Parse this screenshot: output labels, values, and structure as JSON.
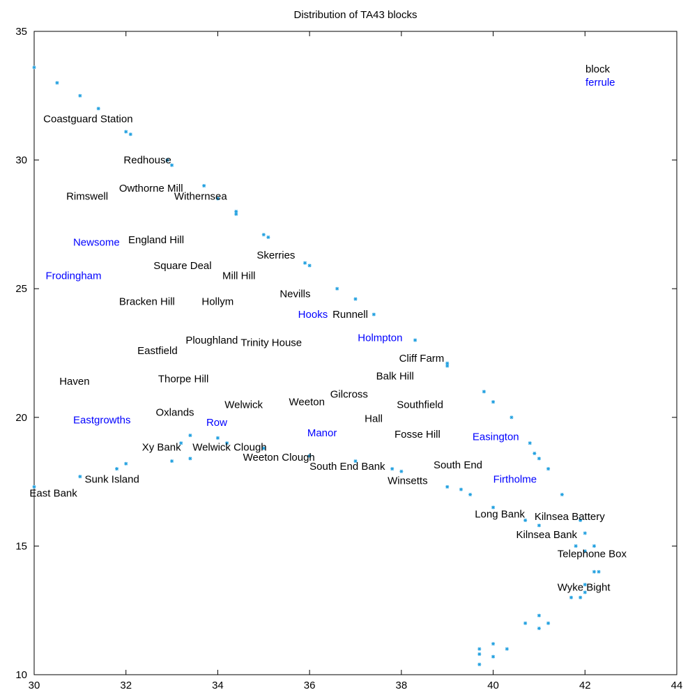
{
  "chart_data": {
    "type": "scatter",
    "title": "Distribution of TA43 blocks",
    "xlabel": "",
    "ylabel": "",
    "xlim": [
      30,
      44
    ],
    "ylim": [
      10,
      35
    ],
    "x_ticks": [
      30,
      32,
      34,
      36,
      38,
      40,
      42,
      44
    ],
    "y_ticks": [
      10,
      15,
      20,
      25,
      30,
      35
    ],
    "grid": false,
    "legend": {
      "placement": "top-right",
      "entries": [
        {
          "name": "block",
          "color": "#000000"
        },
        {
          "name": "ferrule",
          "color": "#0000ff"
        }
      ]
    },
    "marker_color": "#1f9fdf",
    "points": [
      [
        30.0,
        33.6
      ],
      [
        30.5,
        33.0
      ],
      [
        31.0,
        32.5
      ],
      [
        31.4,
        32.0
      ],
      [
        32.0,
        31.1
      ],
      [
        32.1,
        31.0
      ],
      [
        32.9,
        30.0
      ],
      [
        33.0,
        29.8
      ],
      [
        33.7,
        29.0
      ],
      [
        34.0,
        28.5
      ],
      [
        34.4,
        28.0
      ],
      [
        34.4,
        27.9
      ],
      [
        35.0,
        27.1
      ],
      [
        35.1,
        27.0
      ],
      [
        35.9,
        26.0
      ],
      [
        36.0,
        25.9
      ],
      [
        36.6,
        25.0
      ],
      [
        37.0,
        24.6
      ],
      [
        37.4,
        24.0
      ],
      [
        38.3,
        23.0
      ],
      [
        39.0,
        22.1
      ],
      [
        39.0,
        22.0
      ],
      [
        39.8,
        21.0
      ],
      [
        40.0,
        20.6
      ],
      [
        40.4,
        20.0
      ],
      [
        40.8,
        19.0
      ],
      [
        40.9,
        18.6
      ],
      [
        41.0,
        18.4
      ],
      [
        41.2,
        18.0
      ],
      [
        41.5,
        17.0
      ],
      [
        41.9,
        16.0
      ],
      [
        42.0,
        15.5
      ],
      [
        41.8,
        15.0
      ],
      [
        42.2,
        15.0
      ],
      [
        42.0,
        14.8
      ],
      [
        42.2,
        14.0
      ],
      [
        42.3,
        14.0
      ],
      [
        42.0,
        13.5
      ],
      [
        41.9,
        13.0
      ],
      [
        41.7,
        13.0
      ],
      [
        42.0,
        13.2
      ],
      [
        41.0,
        12.3
      ],
      [
        41.2,
        12.0
      ],
      [
        41.0,
        11.8
      ],
      [
        40.7,
        12.0
      ],
      [
        40.3,
        11.0
      ],
      [
        40.0,
        11.2
      ],
      [
        40.0,
        10.7
      ],
      [
        39.7,
        11.0
      ],
      [
        39.7,
        10.8
      ],
      [
        39.7,
        10.4
      ],
      [
        39.0,
        17.3
      ],
      [
        39.3,
        17.2
      ],
      [
        39.5,
        17.0
      ],
      [
        40.0,
        16.5
      ],
      [
        40.7,
        16.0
      ],
      [
        41.0,
        15.8
      ],
      [
        37.8,
        18.0
      ],
      [
        38.0,
        17.9
      ],
      [
        37.0,
        18.3
      ],
      [
        36.0,
        18.5
      ],
      [
        35.0,
        18.8
      ],
      [
        34.2,
        19.0
      ],
      [
        34.0,
        19.2
      ],
      [
        33.4,
        19.3
      ],
      [
        33.2,
        19.0
      ],
      [
        33.0,
        18.3
      ],
      [
        33.4,
        18.4
      ],
      [
        32.0,
        18.2
      ],
      [
        31.8,
        18.0
      ],
      [
        31.0,
        17.7
      ],
      [
        30.0,
        17.3
      ]
    ],
    "labels": [
      {
        "text": "Coastguard Station",
        "x": 30.2,
        "y": 31.6,
        "kind": "block"
      },
      {
        "text": "Redhouse",
        "x": 31.95,
        "y": 30.0,
        "kind": "block"
      },
      {
        "text": "Rimswell",
        "x": 30.7,
        "y": 28.6,
        "kind": "block"
      },
      {
        "text": "Owthorne Mill",
        "x": 31.85,
        "y": 28.9,
        "kind": "block"
      },
      {
        "text": "Withernsea",
        "x": 33.05,
        "y": 28.6,
        "kind": "block"
      },
      {
        "text": "Newsome",
        "x": 30.85,
        "y": 26.8,
        "kind": "ferrule"
      },
      {
        "text": "England Hill",
        "x": 32.05,
        "y": 26.9,
        "kind": "block"
      },
      {
        "text": "Skerries",
        "x": 34.85,
        "y": 26.3,
        "kind": "block"
      },
      {
        "text": "Square Deal",
        "x": 32.6,
        "y": 25.9,
        "kind": "block"
      },
      {
        "text": "Frodingham",
        "x": 30.25,
        "y": 25.5,
        "kind": "ferrule"
      },
      {
        "text": "Mill Hill",
        "x": 34.1,
        "y": 25.5,
        "kind": "block"
      },
      {
        "text": "Nevills",
        "x": 35.35,
        "y": 24.8,
        "kind": "block"
      },
      {
        "text": "Bracken Hill",
        "x": 31.85,
        "y": 24.5,
        "kind": "block"
      },
      {
        "text": "Hollym",
        "x": 33.65,
        "y": 24.5,
        "kind": "block"
      },
      {
        "text": "Hooks",
        "x": 35.75,
        "y": 24.0,
        "kind": "ferrule"
      },
      {
        "text": "Runnell",
        "x": 36.5,
        "y": 24.0,
        "kind": "block"
      },
      {
        "text": "Holmpton",
        "x": 37.05,
        "y": 23.1,
        "kind": "ferrule"
      },
      {
        "text": "Ploughland",
        "x": 33.3,
        "y": 23.0,
        "kind": "block"
      },
      {
        "text": "Trinity House",
        "x": 34.5,
        "y": 22.9,
        "kind": "block"
      },
      {
        "text": "Eastfield",
        "x": 32.25,
        "y": 22.6,
        "kind": "block"
      },
      {
        "text": "Cliff Farm",
        "x": 37.95,
        "y": 22.3,
        "kind": "block"
      },
      {
        "text": "Balk Hill",
        "x": 37.45,
        "y": 21.6,
        "kind": "block"
      },
      {
        "text": "Haven",
        "x": 30.55,
        "y": 21.4,
        "kind": "block"
      },
      {
        "text": "Thorpe Hill",
        "x": 32.7,
        "y": 21.5,
        "kind": "block"
      },
      {
        "text": "Gilcross",
        "x": 36.45,
        "y": 20.9,
        "kind": "block"
      },
      {
        "text": "Weeton",
        "x": 35.55,
        "y": 20.6,
        "kind": "block"
      },
      {
        "text": "Welwick",
        "x": 34.15,
        "y": 20.5,
        "kind": "block"
      },
      {
        "text": "Southfield",
        "x": 37.9,
        "y": 20.5,
        "kind": "block"
      },
      {
        "text": "Oxlands",
        "x": 32.65,
        "y": 20.2,
        "kind": "block"
      },
      {
        "text": "Hall",
        "x": 37.2,
        "y": 19.95,
        "kind": "block"
      },
      {
        "text": "Eastgrowths",
        "x": 30.85,
        "y": 19.9,
        "kind": "ferrule"
      },
      {
        "text": "Row",
        "x": 33.75,
        "y": 19.8,
        "kind": "ferrule"
      },
      {
        "text": "Manor",
        "x": 35.95,
        "y": 19.4,
        "kind": "ferrule"
      },
      {
        "text": "Fosse Hill",
        "x": 37.85,
        "y": 19.35,
        "kind": "block"
      },
      {
        "text": "Easington",
        "x": 39.55,
        "y": 19.25,
        "kind": "ferrule"
      },
      {
        "text": "Xy Bank",
        "x": 32.35,
        "y": 18.85,
        "kind": "block"
      },
      {
        "text": "Welwick Clough",
        "x": 33.45,
        "y": 18.85,
        "kind": "block"
      },
      {
        "text": "Weeton Clough",
        "x": 34.55,
        "y": 18.45,
        "kind": "block"
      },
      {
        "text": "South End",
        "x": 38.7,
        "y": 18.15,
        "kind": "block"
      },
      {
        "text": "South End Bank",
        "x": 36.0,
        "y": 18.1,
        "kind": "block"
      },
      {
        "text": "Firtholme",
        "x": 40.0,
        "y": 17.6,
        "kind": "ferrule"
      },
      {
        "text": "Sunk Island",
        "x": 31.1,
        "y": 17.6,
        "kind": "block"
      },
      {
        "text": "Winsetts",
        "x": 37.7,
        "y": 17.55,
        "kind": "block"
      },
      {
        "text": "East Bank",
        "x": 29.9,
        "y": 17.05,
        "kind": "block"
      },
      {
        "text": "Long Bank",
        "x": 39.6,
        "y": 16.25,
        "kind": "block"
      },
      {
        "text": "Kilnsea Battery",
        "x": 40.9,
        "y": 16.15,
        "kind": "block"
      },
      {
        "text": "Kilnsea Bank",
        "x": 40.5,
        "y": 15.45,
        "kind": "block"
      },
      {
        "text": "Telephone Box",
        "x": 41.4,
        "y": 14.7,
        "kind": "block"
      },
      {
        "text": "Wyke Bight",
        "x": 41.4,
        "y": 13.4,
        "kind": "block"
      }
    ]
  }
}
